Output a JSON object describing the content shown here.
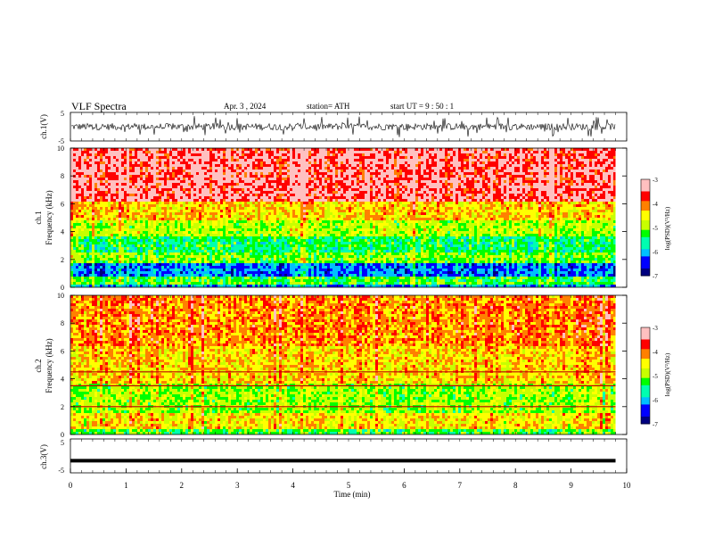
{
  "header": {
    "title": "VLF  Spectra",
    "date": "Apr. 3  , 2024",
    "station": "station= ATH",
    "start": "start  UT  =    9  : 50 : 1"
  },
  "colorbar_label": "log(PSD)(V²/Hz)",
  "colors": {
    "spectrum_scale": [
      "#000080",
      "#0000ff",
      "#00bfff",
      "#00ffb0",
      "#00ff00",
      "#c8ff00",
      "#ffff00",
      "#ff8000",
      "#ff0000",
      "#ffc0c0",
      "#ffffff"
    ]
  },
  "chart_data": [
    {
      "type": "line",
      "id": "ch1-waveform",
      "ylabel": "ch.1(V)",
      "ylim": [
        -5,
        5
      ],
      "yticks": [
        "5",
        "-5"
      ],
      "xlim": [
        0,
        10
      ],
      "description_series": "noisy waveform approx. amplitude ±2 V, spikes to ±4 V",
      "series": [
        {
          "values": [
            0.0,
            0.6,
            -0.9,
            1.2,
            -1.5,
            0.4,
            2.1,
            -2.3,
            0.8,
            -0.4
          ]
        }
      ]
    },
    {
      "type": "heatmap",
      "id": "ch1-spectrogram",
      "ylabel_top": "ch.1",
      "ylabel": "Frequency  (kHz)",
      "ylim": [
        0,
        10
      ],
      "yticks": [
        "0",
        "2",
        "4",
        "6",
        "8",
        "10"
      ],
      "xlim": [
        0,
        9.8
      ],
      "colorbar": {
        "range": [
          -7,
          -3
        ],
        "ticks": [
          "-3",
          "-4",
          "-5",
          "-6",
          "-7"
        ]
      },
      "bands": [
        {
          "from": 0.0,
          "to": 0.3,
          "level": -6.0
        },
        {
          "from": 0.3,
          "to": 0.9,
          "level": -5.2
        },
        {
          "from": 0.9,
          "to": 1.9,
          "level": -6.2
        },
        {
          "from": 1.9,
          "to": 2.6,
          "level": -5.0
        },
        {
          "from": 2.6,
          "to": 3.8,
          "level": -5.4
        },
        {
          "from": 3.8,
          "to": 5.0,
          "level": -4.8
        },
        {
          "from": 5.0,
          "to": 6.2,
          "level": -4.3
        },
        {
          "from": 6.2,
          "to": 10.0,
          "level": -3.4
        }
      ]
    },
    {
      "type": "heatmap",
      "id": "ch2-spectrogram",
      "ylabel_top": "ch.2",
      "ylabel": "Frequency  (kHz)",
      "ylim": [
        0,
        10
      ],
      "yticks": [
        "0",
        "2",
        "4",
        "6",
        "8",
        "10"
      ],
      "xlim": [
        0,
        9.8
      ],
      "colorbar": {
        "range": [
          -7,
          -3
        ],
        "ticks": [
          "-3",
          "-4",
          "-5",
          "-6",
          "-7"
        ]
      },
      "bands": [
        {
          "from": 0.0,
          "to": 0.5,
          "level": -5.2
        },
        {
          "from": 0.5,
          "to": 1.6,
          "level": -4.4
        },
        {
          "from": 1.6,
          "to": 3.8,
          "level": -4.9
        },
        {
          "from": 3.8,
          "to": 6.5,
          "level": -4.3
        },
        {
          "from": 6.5,
          "to": 10.0,
          "level": -4.0
        }
      ],
      "lines_khz": [
        2.0,
        3.5,
        4.5
      ]
    },
    {
      "type": "line",
      "id": "ch3-waveform",
      "ylabel": "ch.3(V)",
      "ylim": [
        -5,
        5
      ],
      "yticks": [
        "5",
        "-5"
      ],
      "xlim": [
        0,
        10
      ],
      "xlabel": "Time  (min)",
      "xticks": [
        "0",
        "1",
        "2",
        "3",
        "4",
        "5",
        "6",
        "7",
        "8",
        "9",
        "10"
      ],
      "series": [
        {
          "values": [
            -1.4,
            -1.4,
            -1.4,
            -1.4,
            -1.4,
            -1.4,
            -1.4,
            -1.4,
            -1.4,
            -1.4
          ]
        }
      ]
    }
  ]
}
